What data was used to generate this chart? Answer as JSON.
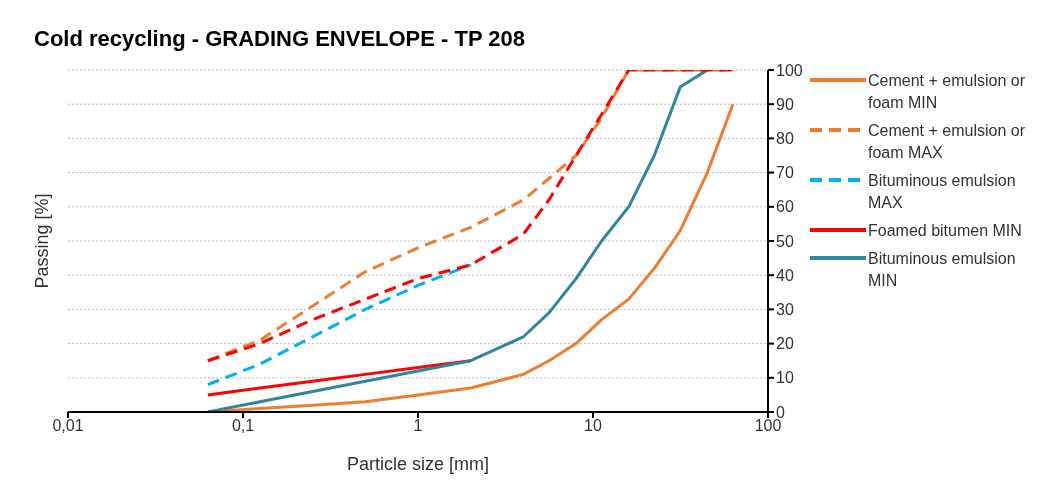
{
  "chart_data": {
    "type": "line",
    "title": "Cold recycling  - GRADING ENVELOPE - TP 208",
    "xlabel": "Particle size [mm]",
    "ylabel": "Passing [%]",
    "log": "x",
    "xlim": [
      0.01,
      100
    ],
    "xticks": [
      {
        "value": 0.01,
        "label": "0,01"
      },
      {
        "value": 0.1,
        "label": "0,1"
      },
      1,
      10,
      100
    ],
    "ylim": [
      0,
      100
    ],
    "yticks": [
      0,
      10,
      20,
      30,
      40,
      50,
      60,
      70,
      80,
      90,
      100
    ],
    "grid": "y",
    "legend": "right",
    "marker": "none",
    "series": [
      {
        "name": "Cement + emulsion or foam MIN",
        "color": "#ed7d31",
        "line_style": "solid",
        "x": [
          0.063,
          0.125,
          0.25,
          0.5,
          1,
          2,
          4,
          5.6,
          8,
          11.2,
          16,
          22.4,
          31.5,
          45,
          63
        ],
        "values": [
          0,
          1,
          2,
          3,
          5,
          7,
          11,
          15,
          20,
          27,
          33,
          42,
          53,
          70,
          90
        ]
      },
      {
        "name": "Cement + emulsion or foam MAX",
        "color": "#ed7d31",
        "line_style": "dashed",
        "x": [
          0.063,
          0.125,
          0.25,
          0.5,
          1,
          2,
          4,
          8,
          11.2,
          16,
          63
        ],
        "values": [
          15,
          21,
          31,
          41,
          48,
          54,
          62,
          75,
          86,
          100,
          100
        ]
      },
      {
        "name": "Bituminous emulsion MAX",
        "color": "#00b0f0",
        "line_style": "dashed",
        "x": [
          0.063,
          0.125,
          0.25,
          0.5,
          1,
          2
        ],
        "values": [
          8,
          14,
          22,
          30,
          37,
          43
        ]
      },
      {
        "name": "Foamed bitumen MIN",
        "color": "#ff0000",
        "line_style": "solid",
        "x": [
          0.063,
          0.125,
          0.25,
          0.5,
          1,
          2
        ],
        "values": [
          5,
          7,
          9,
          11,
          13,
          15
        ]
      },
      {
        "name": "Bituminous emulsion MIN",
        "color": "#31859c",
        "line_style": "solid",
        "x": [
          0.063,
          0.125,
          0.25,
          0.5,
          1,
          2,
          4,
          5.6,
          8,
          11.2,
          16,
          22.4,
          31.5,
          45
        ],
        "values": [
          0,
          3,
          6,
          9,
          12,
          15,
          22,
          29,
          39,
          50,
          60,
          75,
          95,
          100
        ]
      },
      {
        "color": "#ff0000",
        "line_style": "dashed",
        "x": [
          0.063,
          0.125,
          0.25,
          0.5,
          1,
          2,
          4,
          5.6,
          8,
          11.2,
          16,
          63
        ],
        "values": [
          15,
          20,
          27,
          33,
          39,
          43,
          52,
          62,
          75,
          87,
          100,
          100
        ]
      }
    ]
  }
}
